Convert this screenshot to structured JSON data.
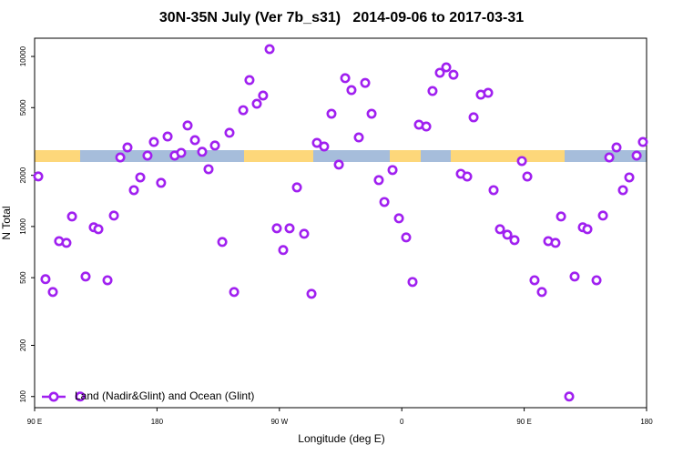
{
  "chart_data": {
    "type": "scatter",
    "title": "30N-35N July (Ver 7b_s31)   2014-09-06 to 2017-03-31",
    "x_label": "Longitude (deg E)",
    "y_label": "N Total",
    "log_y": true,
    "legend_position": "bottom-left",
    "xlim": [
      90,
      540
    ],
    "xticks": [
      {
        "value": 90,
        "label": "90 E"
      },
      {
        "value": 180,
        "label": "180"
      },
      {
        "value": 270,
        "label": "90 W"
      },
      {
        "value": 360,
        "label": "0"
      },
      {
        "value": 450,
        "label": "90 E"
      },
      {
        "value": 540,
        "label": "180"
      }
    ],
    "ylim": [
      86,
      12800
    ],
    "yticks": [
      100,
      200,
      500,
      1000,
      2000,
      5000,
      10000
    ],
    "series": [
      {
        "name": "Land (Nadir&Glint) and Ocean (Glint)",
        "color": "#a020f0",
        "x": [
          92.7,
          98,
          103.4,
          108,
          113.4,
          117.5,
          123.5,
          127.5,
          133.5,
          136.9,
          143.6,
          148.3,
          153,
          158.3,
          163,
          167.7,
          173,
          177.7,
          183,
          187.8,
          193,
          197.8,
          202.5,
          207.9,
          213.2,
          217.9,
          222.6,
          228,
          233.3,
          236.7,
          243.4,
          248,
          253.4,
          258,
          262.8,
          268.1,
          272.8,
          277.5,
          282.9,
          288.2,
          293.6,
          297.6,
          302.9,
          308.3,
          313.7,
          318.4,
          323,
          328.4,
          333.1,
          337.8,
          343.1,
          347.2,
          353.2,
          357.9,
          363.2,
          367.9,
          372.6,
          378,
          382.6,
          388,
          392.7,
          398,
          403.4,
          408.1,
          412.8,
          418.1,
          423.5,
          427.5,
          432.2,
          437.6,
          442.9,
          448.3,
          452.3,
          457.6,
          463,
          467.7,
          473,
          477.1,
          483.1,
          487.1,
          493.1,
          496.5,
          503.2,
          507.9,
          512.6,
          517.9,
          522.6,
          527.3,
          532.7,
          537.3
        ],
        "values": [
          1970,
          490,
          412,
          820,
          801,
          1145,
          100,
          508,
          989,
          964,
          483,
          1159,
          2548,
          2917,
          1636,
          1944,
          2612,
          3141,
          1806,
          3382,
          2612,
          2711,
          3926,
          3220,
          2750,
          2172,
          2993,
          811,
          3557,
          412,
          4831,
          7260,
          5270,
          5890,
          11040,
          976,
          727,
          976,
          1698,
          906,
          402,
          3104,
          2955,
          4603,
          2312,
          7450,
          6340,
          3340,
          6990,
          4603,
          1874,
          1394,
          2149,
          1117,
          863,
          472,
          3972,
          3873,
          6260,
          8020,
          8630,
          7810,
          2042,
          1968,
          4385,
          5960,
          6110,
          1636,
          964,
          895,
          832,
          2427,
          1968,
          483,
          412,
          820,
          801,
          1145,
          100,
          508,
          989,
          964,
          483,
          1159,
          2548,
          2917,
          1636,
          1944,
          2612,
          3141
        ]
      }
    ]
  }
}
